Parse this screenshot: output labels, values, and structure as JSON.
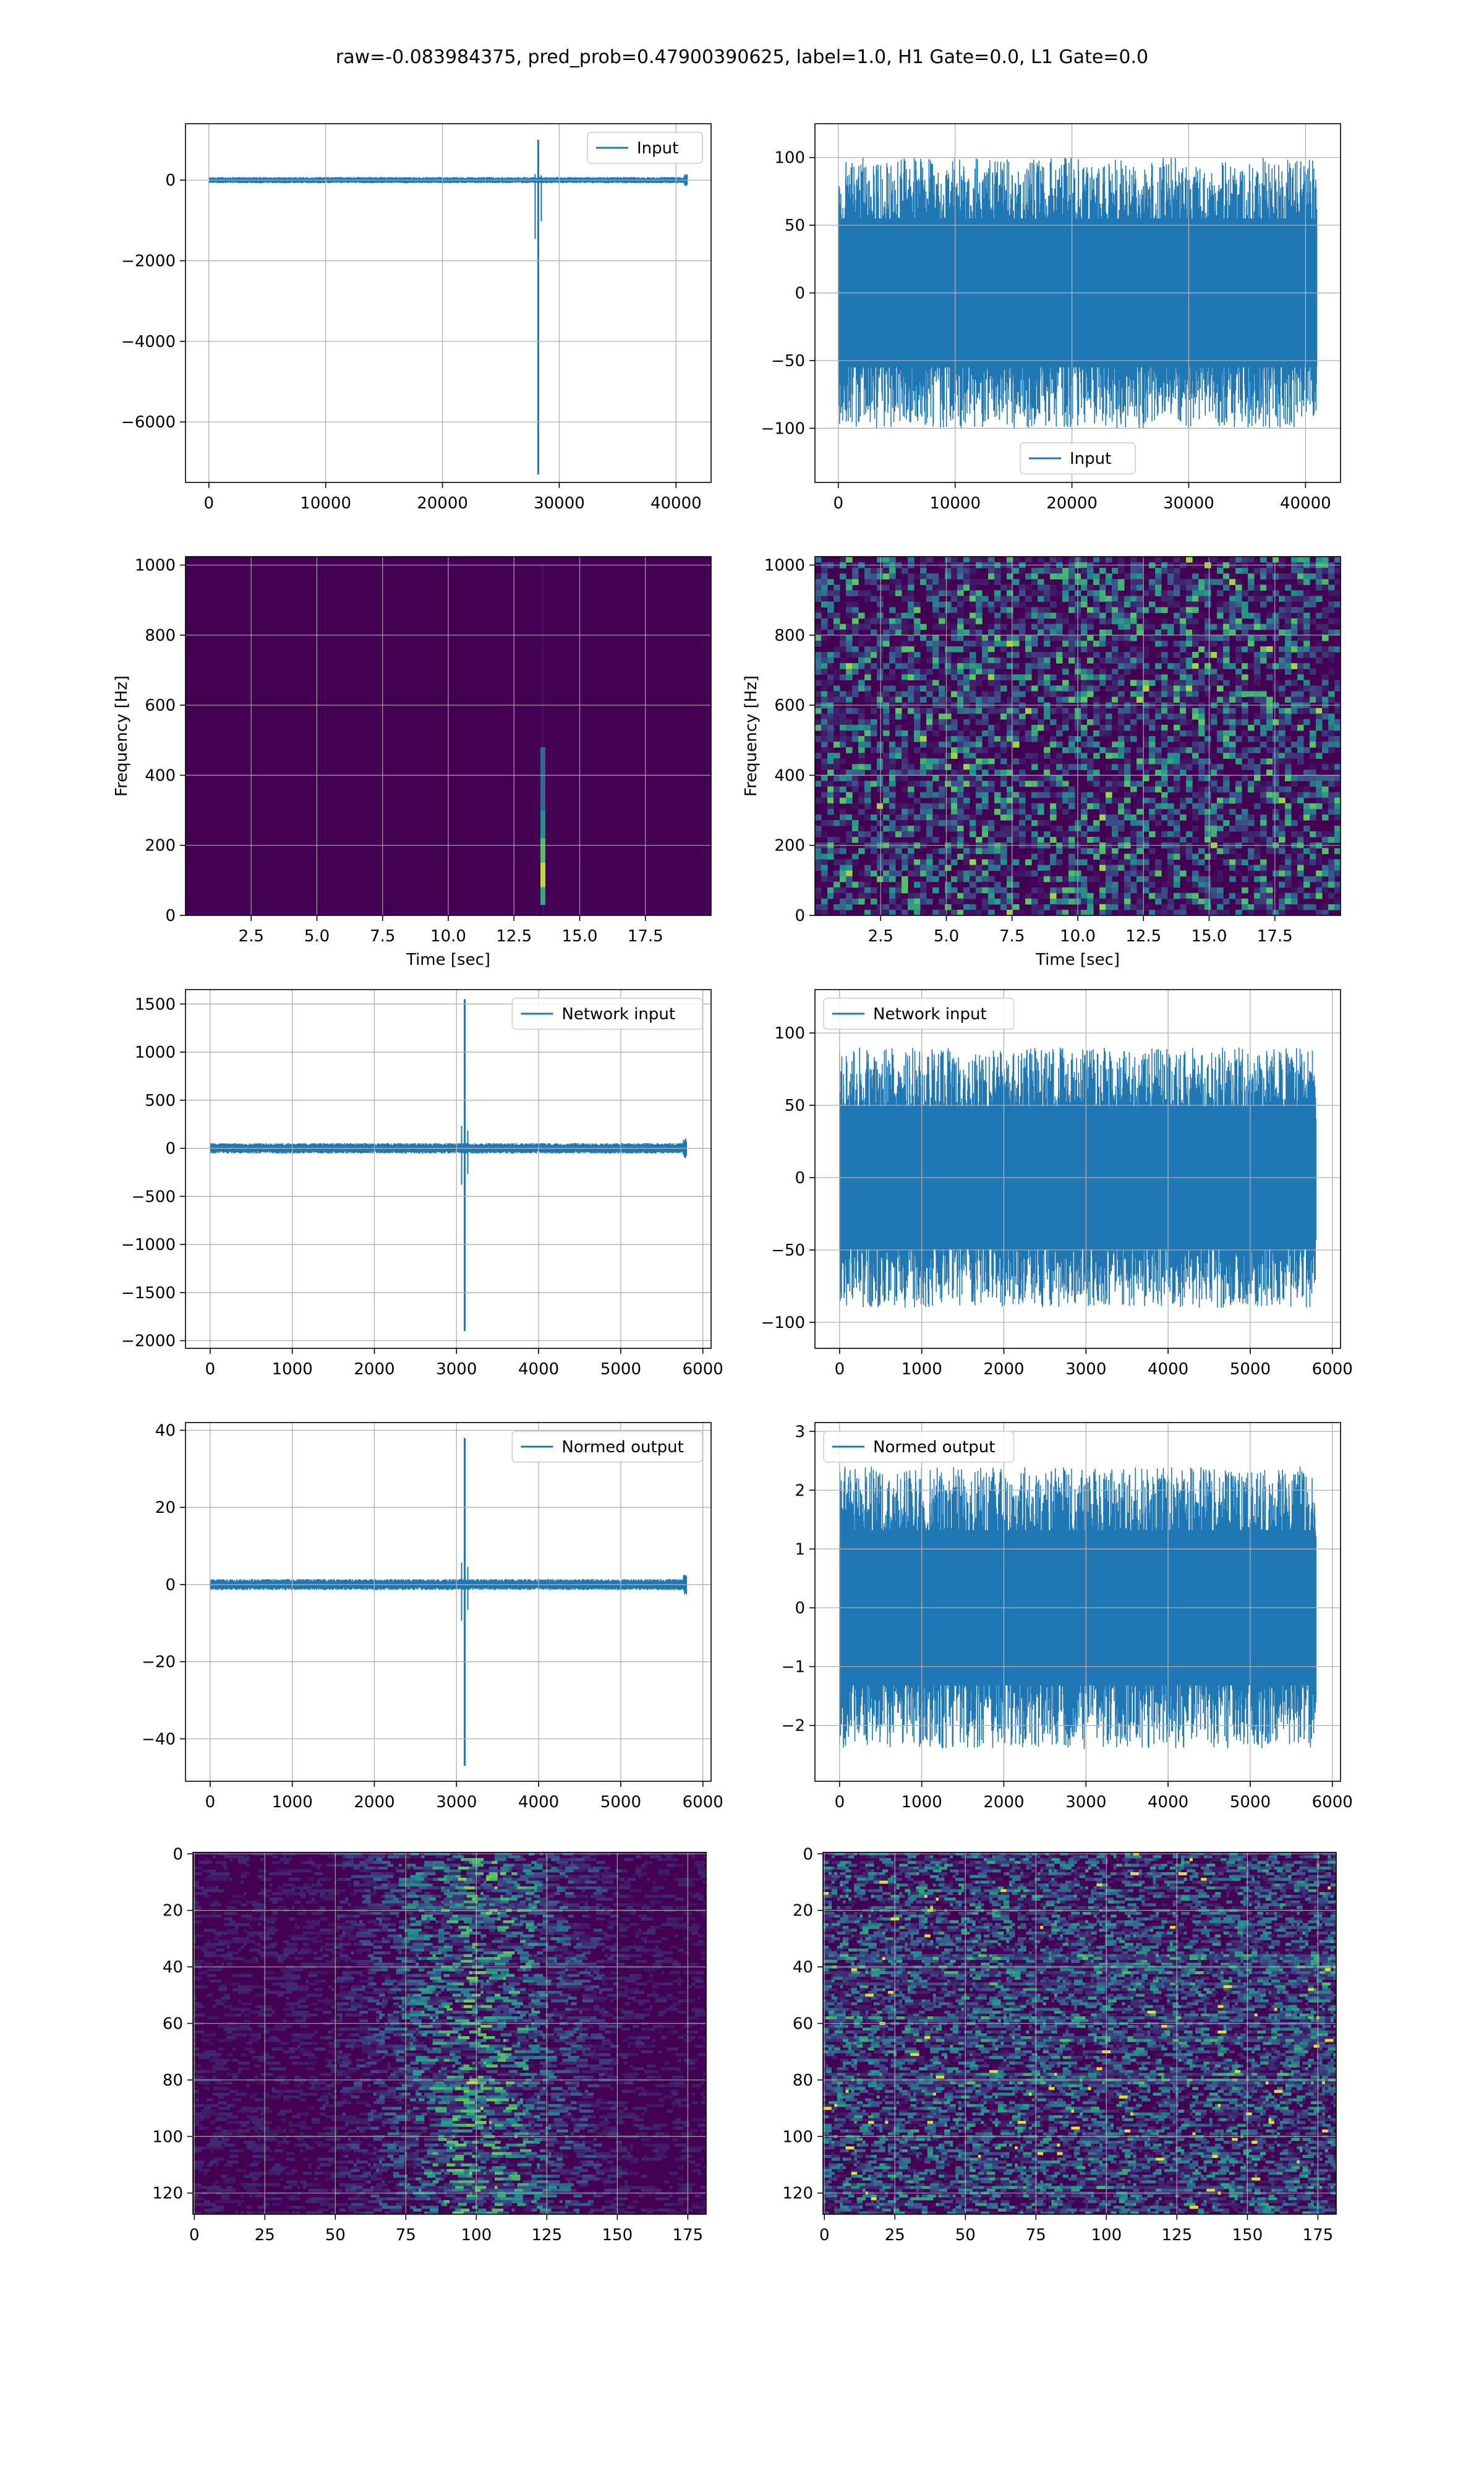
{
  "figure_title": "raw=-0.083984375, pred_prob=0.47900390625, label=1.0, H1 Gate=0.0, L1 Gate=0.0",
  "colors": {
    "line": "#1f77b4",
    "viridis_dark": "#440154",
    "viridis_mid": "#21918c",
    "viridis_light": "#5ec962",
    "viridis_bright": "#fde725",
    "grid": "#b0b0b0",
    "axes": "#000000",
    "legend_edge": "#cccccc"
  },
  "chart_data": [
    {
      "id": "r1c1",
      "type": "line",
      "signal": "spike",
      "xlim": [
        -2000,
        43000
      ],
      "ylim": [
        -7500,
        1400
      ],
      "x_range": [
        0,
        40960
      ],
      "spike_x": 28200,
      "spike_min": -7300,
      "spike_max": 1000,
      "noise_amp": 70,
      "xticks": [
        0,
        10000,
        20000,
        30000,
        40000
      ],
      "yticks": [
        0,
        -2000,
        -4000,
        -6000
      ],
      "legend": "Input",
      "legend_loc": "upper right",
      "xlabel": "",
      "ylabel": "",
      "grid": true
    },
    {
      "id": "r1c2",
      "type": "line",
      "signal": "noise",
      "xlim": [
        -2000,
        43000
      ],
      "ylim": [
        -140,
        125
      ],
      "x_range": [
        0,
        40960
      ],
      "noise_amp": 100,
      "xticks": [
        0,
        10000,
        20000,
        30000,
        40000
      ],
      "yticks": [
        100,
        50,
        0,
        -50,
        -100
      ],
      "legend": "Input",
      "legend_loc": "lower center",
      "xlabel": "",
      "ylabel": "",
      "grid": true
    },
    {
      "id": "r2c1",
      "type": "heatmap",
      "pattern": "spectrogram_spike",
      "xlim": [
        0,
        20
      ],
      "ylim": [
        0,
        1024
      ],
      "spike_x": 13.6,
      "xticks": [
        "2.5",
        "5.0",
        "7.5",
        "10.0",
        "12.5",
        "15.0",
        "17.5"
      ],
      "yticks": [
        0,
        200,
        400,
        600,
        800,
        1000
      ],
      "xlabel": "Time [sec]",
      "ylabel": "Frequency [Hz]",
      "grid": true
    },
    {
      "id": "r2c2",
      "type": "heatmap",
      "pattern": "spectrogram_noise",
      "xlim": [
        0,
        20
      ],
      "ylim": [
        0,
        1024
      ],
      "xticks": [
        "2.5",
        "5.0",
        "7.5",
        "10.0",
        "12.5",
        "15.0",
        "17.5"
      ],
      "yticks": [
        0,
        200,
        400,
        600,
        800,
        1000
      ],
      "xlabel": "Time [sec]",
      "ylabel": "Frequency [Hz]",
      "grid": true
    },
    {
      "id": "r3c1",
      "type": "line",
      "signal": "spike",
      "xlim": [
        -300,
        6100
      ],
      "ylim": [
        -2080,
        1650
      ],
      "x_range": [
        0,
        5800
      ],
      "spike_x": 3100,
      "spike_min": -1900,
      "spike_max": 1550,
      "noise_amp": 50,
      "xticks": [
        0,
        1000,
        2000,
        3000,
        4000,
        5000,
        6000
      ],
      "yticks": [
        1500,
        1000,
        500,
        0,
        -500,
        -1000,
        -1500,
        -2000
      ],
      "legend": "Network input",
      "legend_loc": "upper right",
      "xlabel": "",
      "ylabel": "",
      "grid": true
    },
    {
      "id": "r3c2",
      "type": "line",
      "signal": "noise",
      "xlim": [
        -300,
        6100
      ],
      "ylim": [
        -118,
        130
      ],
      "x_range": [
        0,
        5800
      ],
      "noise_amp": 90,
      "xticks": [
        0,
        1000,
        2000,
        3000,
        4000,
        5000,
        6000
      ],
      "yticks": [
        100,
        50,
        0,
        -50,
        -100
      ],
      "legend": "Network input",
      "legend_loc": "upper left",
      "xlabel": "",
      "ylabel": "",
      "grid": true
    },
    {
      "id": "r4c1",
      "type": "line",
      "signal": "spike",
      "xlim": [
        -300,
        6100
      ],
      "ylim": [
        -51,
        42
      ],
      "x_range": [
        0,
        5800
      ],
      "spike_x": 3100,
      "spike_min": -47,
      "spike_max": 38,
      "noise_amp": 1.3,
      "xticks": [
        0,
        1000,
        2000,
        3000,
        4000,
        5000,
        6000
      ],
      "yticks": [
        40,
        20,
        0,
        -20,
        -40
      ],
      "legend": "Normed output",
      "legend_loc": "upper right",
      "xlabel": "",
      "ylabel": "",
      "grid": true
    },
    {
      "id": "r4c2",
      "type": "line",
      "signal": "noise",
      "xlim": [
        -300,
        6100
      ],
      "ylim": [
        -2.95,
        3.15
      ],
      "x_range": [
        0,
        5800
      ],
      "noise_amp": 2.4,
      "xticks": [
        0,
        1000,
        2000,
        3000,
        4000,
        5000,
        6000
      ],
      "yticks": [
        3,
        2,
        1,
        0,
        -1,
        -2
      ],
      "legend": "Normed output",
      "legend_loc": "upper left",
      "xlabel": "",
      "ylabel": "",
      "grid": true
    },
    {
      "id": "r5c1",
      "type": "heatmap",
      "pattern": "image_band",
      "xlim": [
        -0.5,
        181.5
      ],
      "ylim": [
        127.5,
        -0.5
      ],
      "rows": 128,
      "cols": 182,
      "xticks": [
        0,
        25,
        50,
        75,
        100,
        125,
        150,
        175
      ],
      "yticks": [
        0,
        20,
        40,
        60,
        80,
        100,
        120
      ],
      "xlabel": "",
      "ylabel": "",
      "grid": true
    },
    {
      "id": "r5c2",
      "type": "heatmap",
      "pattern": "image_noise",
      "xlim": [
        -0.5,
        181.5
      ],
      "ylim": [
        127.5,
        -0.5
      ],
      "rows": 128,
      "cols": 182,
      "xticks": [
        0,
        25,
        50,
        75,
        100,
        125,
        150,
        175
      ],
      "yticks": [
        0,
        20,
        40,
        60,
        80,
        100,
        120
      ],
      "xlabel": "",
      "ylabel": "",
      "grid": true
    }
  ]
}
